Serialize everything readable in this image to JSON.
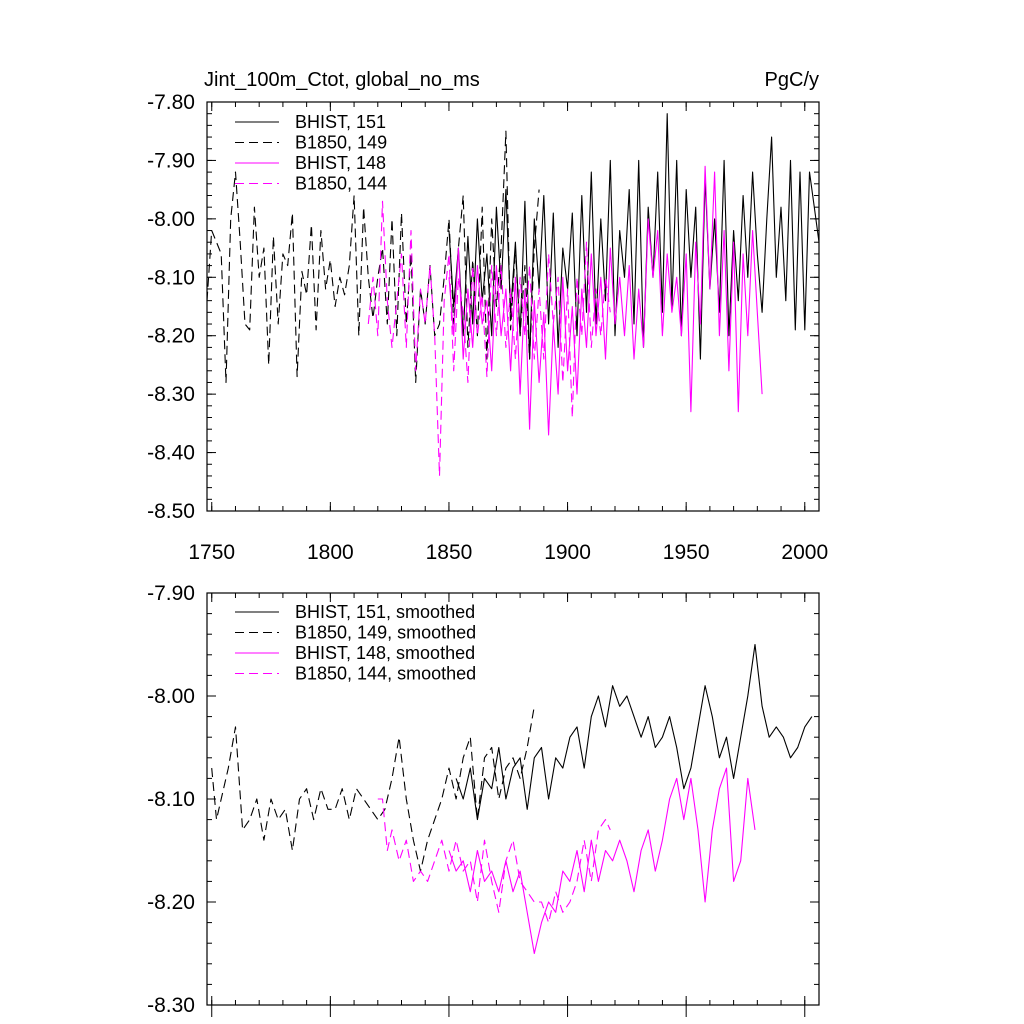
{
  "chart_data": [
    {
      "type": "line",
      "title_left": "Jint_100m_Ctot, global_no_ms",
      "title_right": "PgC/y",
      "xlim": [
        1748,
        2006
      ],
      "ylim": [
        -8.5,
        -7.8
      ],
      "x_ticks": [
        1750,
        1800,
        1850,
        1900,
        1950,
        2000
      ],
      "x_tick_labels": [
        "1750",
        "1800",
        "1850",
        "1900",
        "1950",
        "2000"
      ],
      "y_ticks": [
        -7.8,
        -7.9,
        -8.0,
        -8.1,
        -8.2,
        -8.3,
        -8.4,
        -8.5
      ],
      "y_tick_labels": [
        "-7.80",
        "-7.90",
        "-8.00",
        "-8.10",
        "-8.20",
        "-8.30",
        "-8.40",
        "-8.50"
      ],
      "legend_position": "top-left",
      "series": [
        {
          "name": "BHIST, 151",
          "color": "#000000",
          "dash": "solid",
          "x": [
            1850,
            1852,
            1854,
            1856,
            1858,
            1860,
            1862,
            1864,
            1866,
            1868,
            1870,
            1872,
            1874,
            1876,
            1878,
            1880,
            1882,
            1884,
            1886,
            1888,
            1890,
            1892,
            1894,
            1896,
            1898,
            1900,
            1902,
            1904,
            1906,
            1908,
            1910,
            1912,
            1914,
            1916,
            1918,
            1920,
            1922,
            1924,
            1926,
            1928,
            1930,
            1932,
            1934,
            1936,
            1938,
            1940,
            1942,
            1944,
            1946,
            1948,
            1950,
            1952,
            1954,
            1956,
            1958,
            1960,
            1962,
            1964,
            1966,
            1968,
            1970,
            1972,
            1974,
            1976,
            1978,
            1980,
            1982,
            1984,
            1986,
            1988,
            1990,
            1992,
            1994,
            1996,
            1998,
            2000,
            2002,
            2004,
            2006
          ],
          "y": [
            -8.02,
            -8.15,
            -8.05,
            -8.2,
            -8.03,
            -8.18,
            -8.0,
            -8.14,
            -8.06,
            -8.2,
            -7.98,
            -8.12,
            -7.95,
            -8.16,
            -8.04,
            -8.2,
            -7.97,
            -8.24,
            -8.0,
            -8.12,
            -7.96,
            -8.18,
            -7.99,
            -8.22,
            -8.05,
            -8.12,
            -7.99,
            -8.2,
            -7.96,
            -8.16,
            -7.92,
            -8.18,
            -8.0,
            -8.14,
            -7.9,
            -8.2,
            -8.02,
            -8.1,
            -7.95,
            -8.18,
            -7.9,
            -8.22,
            -7.98,
            -8.1,
            -7.92,
            -8.16,
            -7.82,
            -8.15,
            -7.9,
            -8.2,
            -7.95,
            -8.1,
            -7.98,
            -8.24,
            -7.93,
            -8.12,
            -8.0,
            -8.16,
            -7.9,
            -8.2,
            -8.02,
            -8.14,
            -7.96,
            -8.1,
            -7.92,
            -8.06,
            -8.16,
            -8.0,
            -7.86,
            -8.1,
            -7.98,
            -8.14,
            -7.9,
            -8.19,
            -7.92,
            -8.19,
            -7.92,
            -7.98,
            -8.04
          ]
        },
        {
          "name": "B1850, 149",
          "color": "#000000",
          "dash": "dashed",
          "x": [
            1748,
            1750,
            1752,
            1754,
            1756,
            1758,
            1760,
            1762,
            1764,
            1766,
            1768,
            1770,
            1772,
            1774,
            1776,
            1778,
            1780,
            1782,
            1784,
            1786,
            1788,
            1790,
            1792,
            1794,
            1796,
            1798,
            1800,
            1802,
            1804,
            1806,
            1808,
            1810,
            1812,
            1814,
            1816,
            1818,
            1820,
            1822,
            1824,
            1826,
            1828,
            1830,
            1832,
            1834,
            1836,
            1838,
            1840,
            1842,
            1844,
            1846,
            1848,
            1850,
            1852,
            1854,
            1856,
            1858,
            1860,
            1862,
            1864,
            1866,
            1868,
            1870,
            1872,
            1874,
            1876,
            1878,
            1880,
            1882,
            1884,
            1886,
            1888
          ],
          "y": [
            -8.14,
            -8.02,
            -8.04,
            -8.06,
            -8.28,
            -8.0,
            -7.92,
            -8.04,
            -8.18,
            -8.19,
            -7.98,
            -8.1,
            -8.05,
            -8.25,
            -8.03,
            -8.18,
            -8.06,
            -8.08,
            -7.99,
            -8.27,
            -8.09,
            -8.13,
            -8.01,
            -8.19,
            -8.02,
            -8.12,
            -8.07,
            -8.15,
            -8.1,
            -8.13,
            -8.08,
            -7.96,
            -8.2,
            -7.98,
            -8.1,
            -8.17,
            -8.1,
            -8.05,
            -8.18,
            -8.0,
            -8.2,
            -7.99,
            -8.18,
            -8.06,
            -8.28,
            -8.12,
            -8.18,
            -8.08,
            -8.2,
            -8.18,
            -8.1,
            -8.0,
            -8.18,
            -8.05,
            -7.96,
            -8.22,
            -8.07,
            -8.2,
            -7.98,
            -8.24,
            -8.0,
            -8.15,
            -8.05,
            -7.85,
            -8.19,
            -8.05,
            -8.2,
            -8.08,
            -8.24,
            -8.05,
            -7.95
          ]
        },
        {
          "name": "BHIST, 148",
          "color": "#ff00ff",
          "dash": "solid",
          "x": [
            1850,
            1852,
            1854,
            1856,
            1858,
            1860,
            1862,
            1864,
            1866,
            1868,
            1870,
            1872,
            1874,
            1876,
            1878,
            1880,
            1882,
            1884,
            1886,
            1888,
            1890,
            1892,
            1894,
            1896,
            1898,
            1900,
            1902,
            1904,
            1906,
            1908,
            1910,
            1912,
            1914,
            1916,
            1918,
            1920,
            1922,
            1924,
            1926,
            1928,
            1930,
            1932,
            1934,
            1936,
            1938,
            1940,
            1942,
            1944,
            1946,
            1948,
            1950,
            1952,
            1954,
            1956,
            1958,
            1960,
            1962,
            1964,
            1966,
            1968,
            1970,
            1972,
            1974,
            1976,
            1978,
            1980,
            1982
          ],
          "y": [
            -8.1,
            -8.2,
            -8.05,
            -8.24,
            -8.12,
            -8.22,
            -8.08,
            -8.18,
            -8.14,
            -8.26,
            -8.08,
            -8.2,
            -8.12,
            -8.26,
            -8.1,
            -8.3,
            -8.12,
            -8.36,
            -8.14,
            -8.28,
            -8.16,
            -8.37,
            -8.18,
            -8.3,
            -8.1,
            -8.26,
            -8.15,
            -8.3,
            -8.12,
            -8.22,
            -8.06,
            -8.2,
            -8.1,
            -8.24,
            -8.05,
            -8.18,
            -8.1,
            -8.2,
            -8.08,
            -8.24,
            -8.12,
            -8.22,
            -8.0,
            -8.1,
            -8.02,
            -8.2,
            -8.06,
            -8.16,
            -8.1,
            -8.2,
            -8.06,
            -8.33,
            -8.04,
            -8.18,
            -7.91,
            -8.12,
            -7.92,
            -8.2,
            -8.02,
            -8.26,
            -8.04,
            -8.33,
            -8.06,
            -8.2,
            -8.02,
            -8.16,
            -8.3
          ]
        },
        {
          "name": "B1850, 144",
          "color": "#ff00ff",
          "dash": "dashed",
          "x": [
            1816,
            1818,
            1820,
            1822,
            1824,
            1826,
            1828,
            1830,
            1832,
            1834,
            1836,
            1838,
            1840,
            1842,
            1844,
            1846,
            1848,
            1850,
            1852,
            1854,
            1856,
            1858,
            1860,
            1862,
            1864,
            1866,
            1868,
            1870,
            1872,
            1874,
            1876,
            1878,
            1880,
            1882,
            1884,
            1886,
            1888,
            1890,
            1892,
            1894,
            1896,
            1898,
            1900,
            1902,
            1904,
            1906,
            1908,
            1910,
            1912,
            1914,
            1916,
            1918
          ],
          "y": [
            -8.18,
            -8.1,
            -8.2,
            -7.97,
            -8.14,
            -8.22,
            -8.14,
            -8.06,
            -8.22,
            -8.02,
            -8.26,
            -8.12,
            -8.18,
            -8.08,
            -8.2,
            -8.44,
            -8.14,
            -8.06,
            -8.26,
            -8.1,
            -8.16,
            -8.28,
            -8.08,
            -8.2,
            -8.13,
            -8.27,
            -8.08,
            -8.2,
            -8.08,
            -8.22,
            -8.12,
            -8.24,
            -8.1,
            -8.2,
            -8.08,
            -8.24,
            -8.12,
            -8.24,
            -8.06,
            -8.18,
            -8.1,
            -8.28,
            -8.12,
            -8.34,
            -8.1,
            -8.2,
            -8.04,
            -8.22,
            -8.12,
            -8.2,
            -8.1,
            -8.16
          ]
        }
      ]
    },
    {
      "type": "line",
      "xlim": [
        1748,
        2006
      ],
      "ylim": [
        -8.3,
        -7.9
      ],
      "y_ticks": [
        -7.9,
        -8.0,
        -8.1,
        -8.2,
        -8.3
      ],
      "y_tick_labels": [
        "-7.90",
        "-8.00",
        "-8.10",
        "-8.20",
        "-8.30"
      ],
      "legend_position": "top-left",
      "series": [
        {
          "name": "BHIST, 151, smoothed",
          "color": "#000000",
          "dash": "solid",
          "x": [
            1853,
            1856,
            1859,
            1862,
            1865,
            1868,
            1871,
            1874,
            1877,
            1880,
            1883,
            1886,
            1889,
            1892,
            1895,
            1898,
            1901,
            1904,
            1907,
            1910,
            1913,
            1916,
            1919,
            1922,
            1925,
            1928,
            1931,
            1934,
            1937,
            1940,
            1943,
            1946,
            1949,
            1952,
            1955,
            1958,
            1961,
            1964,
            1967,
            1970,
            1973,
            1976,
            1979,
            1982,
            1985,
            1988,
            1991,
            1994,
            1997,
            2000,
            2003
          ],
          "y": [
            -8.08,
            -8.1,
            -8.07,
            -8.12,
            -8.08,
            -8.09,
            -8.05,
            -8.1,
            -8.07,
            -8.06,
            -8.11,
            -8.06,
            -8.05,
            -8.1,
            -8.06,
            -8.07,
            -8.04,
            -8.03,
            -8.07,
            -8.02,
            -8.0,
            -8.03,
            -7.99,
            -8.01,
            -8.0,
            -8.02,
            -8.04,
            -8.02,
            -8.05,
            -8.04,
            -8.02,
            -8.05,
            -8.09,
            -8.07,
            -8.03,
            -7.99,
            -8.02,
            -8.06,
            -8.04,
            -8.08,
            -8.04,
            -8.0,
            -7.95,
            -8.01,
            -8.04,
            -8.03,
            -8.04,
            -8.06,
            -8.05,
            -8.03,
            -8.02
          ]
        },
        {
          "name": "B1850, 149, smoothed",
          "color": "#000000",
          "dash": "dashed",
          "x": [
            1750,
            1752,
            1754,
            1757,
            1760,
            1763,
            1766,
            1769,
            1772,
            1775,
            1778,
            1781,
            1784,
            1787,
            1790,
            1793,
            1796,
            1799,
            1802,
            1805,
            1808,
            1811,
            1814,
            1817,
            1820,
            1823,
            1826,
            1829,
            1832,
            1835,
            1838,
            1841,
            1844,
            1847,
            1850,
            1853,
            1856,
            1859,
            1862,
            1865,
            1868,
            1871,
            1874,
            1877,
            1880,
            1883,
            1886
          ],
          "y": [
            -8.07,
            -8.12,
            -8.1,
            -8.07,
            -8.03,
            -8.13,
            -8.12,
            -8.1,
            -8.14,
            -8.1,
            -8.12,
            -8.11,
            -8.15,
            -8.1,
            -8.09,
            -8.12,
            -8.09,
            -8.11,
            -8.11,
            -8.09,
            -8.12,
            -8.09,
            -8.1,
            -8.11,
            -8.12,
            -8.11,
            -8.08,
            -8.04,
            -8.1,
            -8.14,
            -8.17,
            -8.14,
            -8.12,
            -8.1,
            -8.07,
            -8.1,
            -8.06,
            -8.04,
            -8.12,
            -8.06,
            -8.05,
            -8.1,
            -8.07,
            -8.06,
            -8.08,
            -8.05,
            -8.01
          ]
        },
        {
          "name": "BHIST, 148, smoothed",
          "color": "#ff00ff",
          "dash": "solid",
          "x": [
            1850,
            1853,
            1856,
            1859,
            1862,
            1865,
            1868,
            1871,
            1874,
            1877,
            1880,
            1883,
            1886,
            1889,
            1892,
            1895,
            1898,
            1901,
            1904,
            1907,
            1910,
            1913,
            1916,
            1919,
            1922,
            1925,
            1928,
            1931,
            1934,
            1937,
            1940,
            1943,
            1946,
            1949,
            1952,
            1955,
            1958,
            1961,
            1964,
            1967,
            1970,
            1973,
            1976,
            1979
          ],
          "y": [
            -8.15,
            -8.17,
            -8.16,
            -8.19,
            -8.15,
            -8.18,
            -8.17,
            -8.19,
            -8.16,
            -8.19,
            -8.17,
            -8.21,
            -8.25,
            -8.22,
            -8.2,
            -8.21,
            -8.17,
            -8.18,
            -8.15,
            -8.19,
            -8.14,
            -8.18,
            -8.15,
            -8.16,
            -8.14,
            -8.16,
            -8.19,
            -8.15,
            -8.13,
            -8.17,
            -8.14,
            -8.1,
            -8.08,
            -8.12,
            -8.08,
            -8.13,
            -8.2,
            -8.13,
            -8.09,
            -8.07,
            -8.18,
            -8.16,
            -8.08,
            -8.13
          ]
        },
        {
          "name": "B1850, 144, smoothed",
          "color": "#ff00ff",
          "dash": "dashed",
          "x": [
            1820,
            1822,
            1824,
            1826,
            1829,
            1832,
            1835,
            1838,
            1841,
            1844,
            1847,
            1850,
            1853,
            1856,
            1859,
            1862,
            1865,
            1868,
            1871,
            1874,
            1877,
            1880,
            1883,
            1886,
            1889,
            1892,
            1895,
            1898,
            1901,
            1904,
            1907,
            1910,
            1913,
            1916,
            1918
          ],
          "y": [
            -8.1,
            -8.1,
            -8.15,
            -8.13,
            -8.16,
            -8.14,
            -8.18,
            -8.17,
            -8.18,
            -8.16,
            -8.14,
            -8.17,
            -8.14,
            -8.17,
            -8.16,
            -8.2,
            -8.14,
            -8.18,
            -8.21,
            -8.16,
            -8.14,
            -8.18,
            -8.19,
            -8.2,
            -8.2,
            -8.22,
            -8.19,
            -8.21,
            -8.2,
            -8.18,
            -8.14,
            -8.18,
            -8.13,
            -8.12,
            -8.13
          ]
        }
      ]
    }
  ]
}
